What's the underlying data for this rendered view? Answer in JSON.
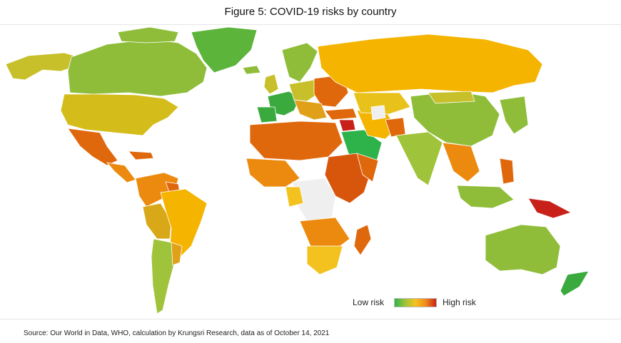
{
  "title": "Figure 5: COVID-19 risks by country",
  "legend": {
    "low_label": "Low risk",
    "high_label": "High risk",
    "gradient_colors": [
      "#2db34a",
      "#9fc33a",
      "#f4c21f",
      "#ef8a1c",
      "#c8211a"
    ]
  },
  "source": "Source: Our World in Data, WHO, calculation by Krungsri Research, data as of October 14, 2021",
  "colors": {
    "no_data": "#efefef",
    "very_low": "#3aaa3f",
    "low": "#8fbd3a",
    "medium_low": "#c7c02a",
    "medium": "#f4b400",
    "medium_high": "#ec8a10",
    "high": "#e0680c",
    "very_high": "#c8211a"
  }
}
